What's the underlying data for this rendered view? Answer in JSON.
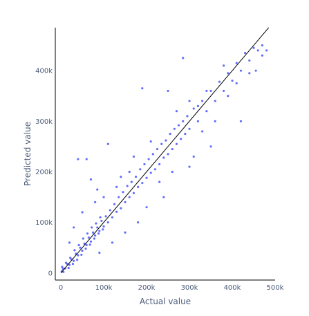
{
  "chart_data": {
    "type": "scatter",
    "xlabel": "Actual value",
    "ylabel": "Predicted value",
    "xlim": [
      -13000,
      500000
    ],
    "ylim": [
      -14000,
      485000
    ],
    "grid": false,
    "x_ticks": [
      {
        "value": 0,
        "label": "0"
      },
      {
        "value": 100000,
        "label": "100k"
      },
      {
        "value": 200000,
        "label": "200k"
      },
      {
        "value": 300000,
        "label": "300k"
      },
      {
        "value": 400000,
        "label": "400k"
      },
      {
        "value": 500000,
        "label": "500k"
      }
    ],
    "y_ticks": [
      {
        "value": 0,
        "label": "0"
      },
      {
        "value": 100000,
        "label": "100k"
      },
      {
        "value": 200000,
        "label": "200k"
      },
      {
        "value": 300000,
        "label": "300k"
      },
      {
        "value": 400000,
        "label": "400k"
      }
    ],
    "series": [
      {
        "marker_color": "#636efa",
        "points": [
          [
            5000,
            8000
          ],
          [
            10000,
            9000
          ],
          [
            15000,
            18000
          ],
          [
            20000,
            16000
          ],
          [
            25000,
            27000
          ],
          [
            30000,
            24000
          ],
          [
            35000,
            38000
          ],
          [
            40000,
            35000
          ],
          [
            45000,
            50000
          ],
          [
            50000,
            44000
          ],
          [
            55000,
            58000
          ],
          [
            60000,
            55000
          ],
          [
            65000,
            70000
          ],
          [
            70000,
            62000
          ],
          [
            75000,
            80000
          ],
          [
            80000,
            74000
          ],
          [
            85000,
            90000
          ],
          [
            90000,
            83000
          ],
          [
            95000,
            103000
          ],
          [
            100000,
            92000
          ],
          [
            105000,
            112000
          ],
          [
            110000,
            100000
          ],
          [
            115000,
            124000
          ],
          [
            120000,
            110000
          ],
          [
            125000,
            136000
          ],
          [
            130000,
            121000
          ],
          [
            135000,
            150000
          ],
          [
            140000,
            128000
          ],
          [
            145000,
            160000
          ],
          [
            150000,
            140000
          ],
          [
            155000,
            172000
          ],
          [
            160000,
            150000
          ],
          [
            165000,
            180000
          ],
          [
            170000,
            158000
          ],
          [
            175000,
            190000
          ],
          [
            180000,
            170000
          ],
          [
            185000,
            205000
          ],
          [
            190000,
            178000
          ],
          [
            195000,
            215000
          ],
          [
            200000,
            188000
          ],
          [
            205000,
            225000
          ],
          [
            210000,
            198000
          ],
          [
            215000,
            235000
          ],
          [
            220000,
            205000
          ],
          [
            225000,
            245000
          ],
          [
            230000,
            215000
          ],
          [
            235000,
            255000
          ],
          [
            240000,
            228000
          ],
          [
            245000,
            262000
          ],
          [
            250000,
            235000
          ],
          [
            255000,
            275000
          ],
          [
            260000,
            245000
          ],
          [
            265000,
            285000
          ],
          [
            270000,
            255000
          ],
          [
            275000,
            292000
          ],
          [
            280000,
            265000
          ],
          [
            285000,
            300000
          ],
          [
            290000,
            275000
          ],
          [
            295000,
            310000
          ],
          [
            300000,
            285000
          ],
          [
            310000,
            325000
          ],
          [
            320000,
            300000
          ],
          [
            330000,
            340000
          ],
          [
            340000,
            320000
          ],
          [
            350000,
            360000
          ],
          [
            360000,
            340000
          ],
          [
            370000,
            378000
          ],
          [
            380000,
            360000
          ],
          [
            390000,
            395000
          ],
          [
            400000,
            380000
          ],
          [
            410000,
            415000
          ],
          [
            420000,
            400000
          ],
          [
            430000,
            435000
          ],
          [
            440000,
            420000
          ],
          [
            450000,
            445000
          ],
          [
            460000,
            440000
          ],
          [
            470000,
            450000
          ],
          [
            480000,
            440000
          ],
          [
            40000,
            225000
          ],
          [
            60000,
            225000
          ],
          [
            70000,
            185000
          ],
          [
            85000,
            165000
          ],
          [
            110000,
            255000
          ],
          [
            190000,
            365000
          ],
          [
            250000,
            360000
          ],
          [
            285000,
            425000
          ],
          [
            150000,
            80000
          ],
          [
            200000,
            130000
          ],
          [
            240000,
            150000
          ],
          [
            300000,
            210000
          ],
          [
            350000,
            250000
          ],
          [
            380000,
            410000
          ],
          [
            420000,
            300000
          ],
          [
            455000,
            400000
          ],
          [
            20000,
            60000
          ],
          [
            30000,
            90000
          ],
          [
            50000,
            120000
          ],
          [
            80000,
            140000
          ],
          [
            90000,
            40000
          ],
          [
            120000,
            60000
          ],
          [
            140000,
            190000
          ],
          [
            170000,
            230000
          ],
          [
            180000,
            100000
          ],
          [
            230000,
            180000
          ],
          [
            260000,
            200000
          ],
          [
            310000,
            230000
          ],
          [
            330000,
            280000
          ],
          [
            360000,
            300000
          ],
          [
            390000,
            350000
          ],
          [
            410000,
            375000
          ],
          [
            440000,
            395000
          ],
          [
            470000,
            430000
          ],
          [
            100000,
            150000
          ],
          [
            130000,
            170000
          ],
          [
            160000,
            200000
          ],
          [
            210000,
            260000
          ],
          [
            270000,
            320000
          ],
          [
            300000,
            340000
          ],
          [
            320000,
            330000
          ],
          [
            340000,
            360000
          ],
          [
            2000,
            3000
          ],
          [
            3000,
            12000
          ],
          [
            6000,
            2000
          ],
          [
            12000,
            20000
          ],
          [
            18000,
            10000
          ],
          [
            22000,
            30000
          ],
          [
            28000,
            18000
          ],
          [
            32000,
            45000
          ],
          [
            38000,
            26000
          ],
          [
            42000,
            55000
          ],
          [
            48000,
            36000
          ],
          [
            52000,
            68000
          ],
          [
            58000,
            48000
          ],
          [
            62000,
            78000
          ],
          [
            68000,
            56000
          ],
          [
            72000,
            90000
          ],
          [
            78000,
            68000
          ],
          [
            82000,
            98000
          ],
          [
            88000,
            78000
          ],
          [
            92000,
            110000
          ],
          [
            98000,
            86000
          ]
        ]
      }
    ],
    "fit_line": {
      "x": [
        0,
        485000
      ],
      "y": [
        0,
        485000
      ],
      "color": "#000000"
    }
  }
}
